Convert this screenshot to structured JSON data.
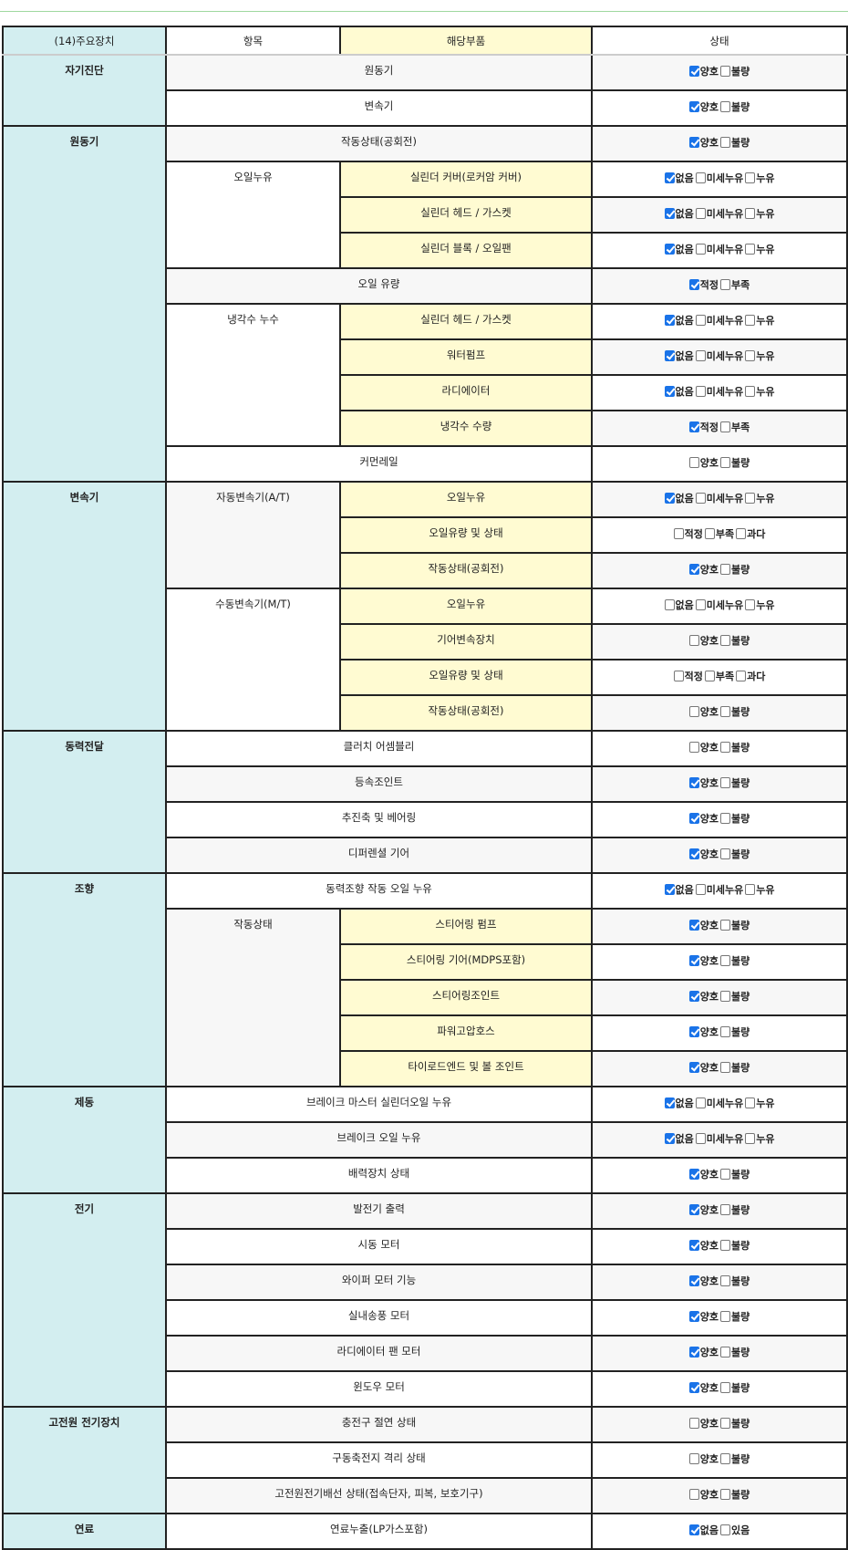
{
  "header": {
    "col1": "(14)주요장치",
    "col2": "항목",
    "col3": "해당부품",
    "col4": "상태"
  },
  "colors": {
    "group_bg": "#d3eef0",
    "part_bg": "#fffbd2",
    "checked": "#1a73e8",
    "topline": "#9fd89f"
  },
  "groups": [
    {
      "name": "자기진단",
      "rows": [
        {
          "part": "원동기",
          "options": [
            "양호",
            "불량"
          ],
          "checked": [
            true,
            false
          ]
        },
        {
          "part": "변속기",
          "options": [
            "양호",
            "불량"
          ],
          "checked": [
            true,
            false
          ]
        }
      ]
    },
    {
      "name": "원동기",
      "rows": [
        {
          "part": "작동상태(공회전)",
          "options": [
            "양호",
            "불량"
          ],
          "checked": [
            true,
            false
          ]
        },
        {
          "sub": "오일누유",
          "subspan": 3,
          "part": "실린더 커버(로커암 커버)",
          "options": [
            "없음",
            "미세누유",
            "누유"
          ],
          "checked": [
            true,
            false,
            false
          ]
        },
        {
          "part": "실린더 헤드 / 가스켓",
          "options": [
            "없음",
            "미세누유",
            "누유"
          ],
          "checked": [
            true,
            false,
            false
          ],
          "in_sub": true
        },
        {
          "part": "실린더 블록 / 오일팬",
          "options": [
            "없음",
            "미세누유",
            "누유"
          ],
          "checked": [
            true,
            false,
            false
          ],
          "in_sub": true
        },
        {
          "part": "오일 유량",
          "options": [
            "적정",
            "부족"
          ],
          "checked": [
            true,
            false
          ]
        },
        {
          "sub": "냉각수 누수",
          "subspan": 4,
          "part": "실린더 헤드 / 가스켓",
          "options": [
            "없음",
            "미세누유",
            "누유"
          ],
          "checked": [
            true,
            false,
            false
          ]
        },
        {
          "part": "워터펌프",
          "options": [
            "없음",
            "미세누유",
            "누유"
          ],
          "checked": [
            true,
            false,
            false
          ],
          "in_sub": true
        },
        {
          "part": "라디에이터",
          "options": [
            "없음",
            "미세누유",
            "누유"
          ],
          "checked": [
            true,
            false,
            false
          ],
          "in_sub": true
        },
        {
          "part": "냉각수 수량",
          "options": [
            "적정",
            "부족"
          ],
          "checked": [
            true,
            false
          ],
          "in_sub": true
        },
        {
          "part": "커먼레일",
          "options": [
            "양호",
            "불량"
          ],
          "checked": [
            false,
            false
          ]
        }
      ]
    },
    {
      "name": "변속기",
      "rows": [
        {
          "sub": "자동변속기(A/T)",
          "subspan": 3,
          "part": "오일누유",
          "options": [
            "없음",
            "미세누유",
            "누유"
          ],
          "checked": [
            true,
            false,
            false
          ]
        },
        {
          "part": "오일유량 및 상태",
          "options": [
            "적정",
            "부족",
            "과다"
          ],
          "checked": [
            false,
            false,
            false
          ],
          "in_sub": true
        },
        {
          "part": "작동상태(공회전)",
          "options": [
            "양호",
            "불량"
          ],
          "checked": [
            true,
            false
          ],
          "in_sub": true
        },
        {
          "sub": "수동변속기(M/T)",
          "subspan": 4,
          "part": "오일누유",
          "options": [
            "없음",
            "미세누유",
            "누유"
          ],
          "checked": [
            false,
            false,
            false
          ]
        },
        {
          "part": "기어변속장치",
          "options": [
            "양호",
            "불량"
          ],
          "checked": [
            false,
            false
          ],
          "in_sub": true
        },
        {
          "part": "오일유량 및 상태",
          "options": [
            "적정",
            "부족",
            "과다"
          ],
          "checked": [
            false,
            false,
            false
          ],
          "in_sub": true
        },
        {
          "part": "작동상태(공회전)",
          "options": [
            "양호",
            "불량"
          ],
          "checked": [
            false,
            false
          ],
          "in_sub": true
        }
      ]
    },
    {
      "name": "동력전달",
      "rows": [
        {
          "part": "클러치 어셈블리",
          "options": [
            "양호",
            "불량"
          ],
          "checked": [
            false,
            false
          ]
        },
        {
          "part": "등속조인트",
          "options": [
            "양호",
            "불량"
          ],
          "checked": [
            true,
            false
          ]
        },
        {
          "part": "추진축 및 베어링",
          "options": [
            "양호",
            "불량"
          ],
          "checked": [
            true,
            false
          ]
        },
        {
          "part": "디퍼렌셜 기어",
          "options": [
            "양호",
            "불량"
          ],
          "checked": [
            true,
            false
          ]
        }
      ]
    },
    {
      "name": "조향",
      "rows": [
        {
          "part": "동력조향 작동 오일 누유",
          "options": [
            "없음",
            "미세누유",
            "누유"
          ],
          "checked": [
            true,
            false,
            false
          ]
        },
        {
          "sub": "작동상태",
          "subspan": 5,
          "part": "스티어링 펌프",
          "options": [
            "양호",
            "불량"
          ],
          "checked": [
            true,
            false
          ]
        },
        {
          "part": "스티어링 기어(MDPS포함)",
          "options": [
            "양호",
            "불량"
          ],
          "checked": [
            true,
            false
          ],
          "in_sub": true
        },
        {
          "part": "스티어링조인트",
          "options": [
            "양호",
            "불량"
          ],
          "checked": [
            true,
            false
          ],
          "in_sub": true
        },
        {
          "part": "파워고압호스",
          "options": [
            "양호",
            "불량"
          ],
          "checked": [
            true,
            false
          ],
          "in_sub": true
        },
        {
          "part": "타이로드엔드 및 볼 조인트",
          "options": [
            "양호",
            "불량"
          ],
          "checked": [
            true,
            false
          ],
          "in_sub": true
        }
      ]
    },
    {
      "name": "제동",
      "rows": [
        {
          "part": "브레이크 마스터 실린더오일 누유",
          "options": [
            "없음",
            "미세누유",
            "누유"
          ],
          "checked": [
            true,
            false,
            false
          ]
        },
        {
          "part": "브레이크 오일 누유",
          "options": [
            "없음",
            "미세누유",
            "누유"
          ],
          "checked": [
            true,
            false,
            false
          ]
        },
        {
          "part": "배력장치 상태",
          "options": [
            "양호",
            "불량"
          ],
          "checked": [
            true,
            false
          ]
        }
      ]
    },
    {
      "name": "전기",
      "rows": [
        {
          "part": "발전기 출력",
          "options": [
            "양호",
            "불량"
          ],
          "checked": [
            true,
            false
          ]
        },
        {
          "part": "시동 모터",
          "options": [
            "양호",
            "불량"
          ],
          "checked": [
            true,
            false
          ]
        },
        {
          "part": "와이퍼 모터 기능",
          "options": [
            "양호",
            "불량"
          ],
          "checked": [
            true,
            false
          ]
        },
        {
          "part": "실내송풍 모터",
          "options": [
            "양호",
            "불량"
          ],
          "checked": [
            true,
            false
          ]
        },
        {
          "part": "라디에이터 팬 모터",
          "options": [
            "양호",
            "불량"
          ],
          "checked": [
            true,
            false
          ]
        },
        {
          "part": "윈도우 모터",
          "options": [
            "양호",
            "불량"
          ],
          "checked": [
            true,
            false
          ]
        }
      ]
    },
    {
      "name": "고전원 전기장치",
      "rows": [
        {
          "part": "충전구 절연 상태",
          "options": [
            "양호",
            "불량"
          ],
          "checked": [
            false,
            false
          ]
        },
        {
          "part": "구동축전지 격리 상태",
          "options": [
            "양호",
            "불량"
          ],
          "checked": [
            false,
            false
          ]
        },
        {
          "part": "고전원전기배선 상태(접속단자, 피복, 보호기구)",
          "options": [
            "양호",
            "불량"
          ],
          "checked": [
            false,
            false
          ]
        }
      ]
    },
    {
      "name": "연료",
      "rows": [
        {
          "part": "연료누출(LP가스포함)",
          "options": [
            "없음",
            "있음"
          ],
          "checked": [
            true,
            false
          ]
        }
      ]
    }
  ]
}
